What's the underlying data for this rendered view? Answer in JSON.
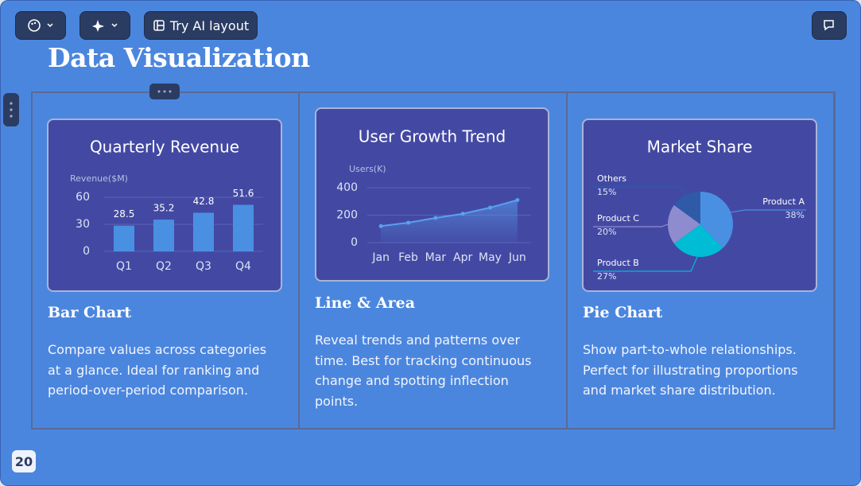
{
  "toolbar": {
    "ai_layout": "Try AI layout"
  },
  "slide": {
    "title": "Data Visualization",
    "page_number": "20"
  },
  "cards": [
    {
      "heading": "Bar Chart",
      "description": "Compare values across categories at a glance. Ideal for ranking and period-over-period comparison."
    },
    {
      "heading": "Line & Area",
      "description": "Reveal trends and patterns over time. Best for tracking continuous change and spotting inflection points."
    },
    {
      "heading": "Pie Chart",
      "description": "Show part-to-whole relationships. Perfect for illustrating proportions and market share distribution."
    }
  ],
  "chart_data": [
    {
      "type": "bar",
      "title": "Quarterly Revenue",
      "y_label": "Revenue($M)",
      "categories": [
        "Q1",
        "Q2",
        "Q3",
        "Q4"
      ],
      "values": [
        28.5,
        35.2,
        42.8,
        51.6
      ],
      "color": "#4a90e2",
      "ylim": [
        0,
        60
      ],
      "yticks": [
        0,
        30,
        60
      ],
      "grid": true
    },
    {
      "type": "line",
      "title": "User Growth Trend",
      "y_label": "Users(K)",
      "categories": [
        "Jan",
        "Feb",
        "Mar",
        "Apr",
        "May",
        "Jun"
      ],
      "values": [
        120,
        145,
        180,
        210,
        255,
        310
      ],
      "color": "#5aa0f0",
      "ylim": [
        0,
        400
      ],
      "yticks": [
        0,
        200,
        400
      ],
      "grid": true
    },
    {
      "type": "pie",
      "title": "Market Share",
      "categories": [
        "Product A",
        "Product B",
        "Product C",
        "Others"
      ],
      "values": [
        38,
        27,
        20,
        15
      ],
      "value_labels": [
        "38%",
        "27%",
        "20%",
        "15%"
      ],
      "colors": [
        "#4a90e2",
        "#00bcd4",
        "#8e8ccf",
        "#2e5aa8"
      ]
    }
  ]
}
